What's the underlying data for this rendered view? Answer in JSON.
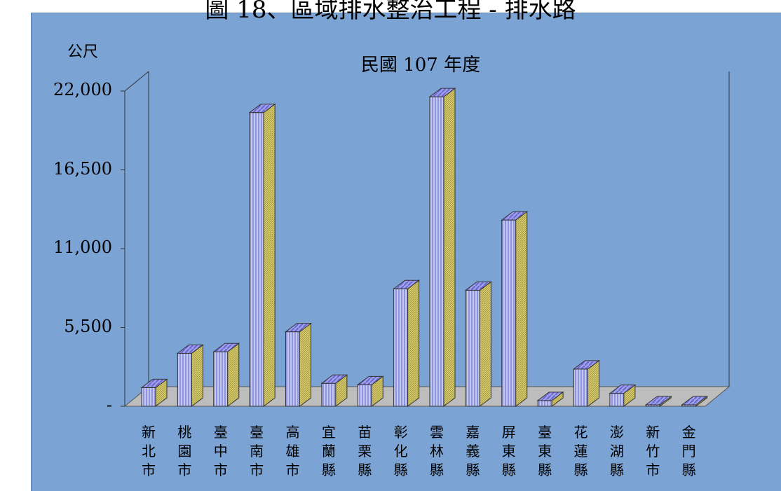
{
  "chart_data": {
    "type": "bar",
    "title": "圖 18、區域排水整治工程 - 排水路",
    "subtitle": "民國 107 年度",
    "ylabel": "公尺",
    "ylim": [
      0,
      22000
    ],
    "yticks": [
      "-",
      "5,500",
      "11,000",
      "16,500",
      "22,000"
    ],
    "ytick_values": [
      0,
      5500,
      11000,
      16500,
      22000
    ],
    "categories": [
      "新北市",
      "桃園市",
      "臺中市",
      "臺南市",
      "高雄市",
      "宜蘭縣",
      "苗栗縣",
      "彰化縣",
      "雲林縣",
      "嘉義縣",
      "屏東縣",
      "臺東縣",
      "花蓮縣",
      "澎湖縣",
      "新竹市",
      "金門縣"
    ],
    "category_lines": [
      [
        "新",
        "北",
        "市"
      ],
      [
        "桃",
        "園",
        "市"
      ],
      [
        "臺",
        "中",
        "市"
      ],
      [
        "臺",
        "南",
        "市"
      ],
      [
        "高",
        "雄",
        "市"
      ],
      [
        "宜",
        "蘭",
        "縣"
      ],
      [
        "苗",
        "栗",
        "縣"
      ],
      [
        "彰",
        "化",
        "縣"
      ],
      [
        "雲",
        "林",
        "縣"
      ],
      [
        "嘉",
        "義",
        "縣"
      ],
      [
        "屏",
        "東",
        "縣"
      ],
      [
        "臺",
        "東",
        "縣"
      ],
      [
        "花",
        "蓮",
        "縣"
      ],
      [
        "澎",
        "湖",
        "縣"
      ],
      [
        "新",
        "竹",
        "市"
      ],
      [
        "金",
        "門",
        "縣"
      ]
    ],
    "values": [
      1300,
      3700,
      3800,
      20500,
      5200,
      1600,
      1500,
      8200,
      21600,
      8100,
      13000,
      400,
      2600,
      900,
      80,
      50
    ],
    "grid": false,
    "legend": "none"
  },
  "colors": {
    "plot_bg": "#7ba3d4",
    "floor": "#bdbdbd",
    "bar_front_a": "#c5c8ee",
    "bar_front_b": "#8e95dc",
    "bar_top": "#7f82e0",
    "bar_side": "#c8bc5c"
  }
}
